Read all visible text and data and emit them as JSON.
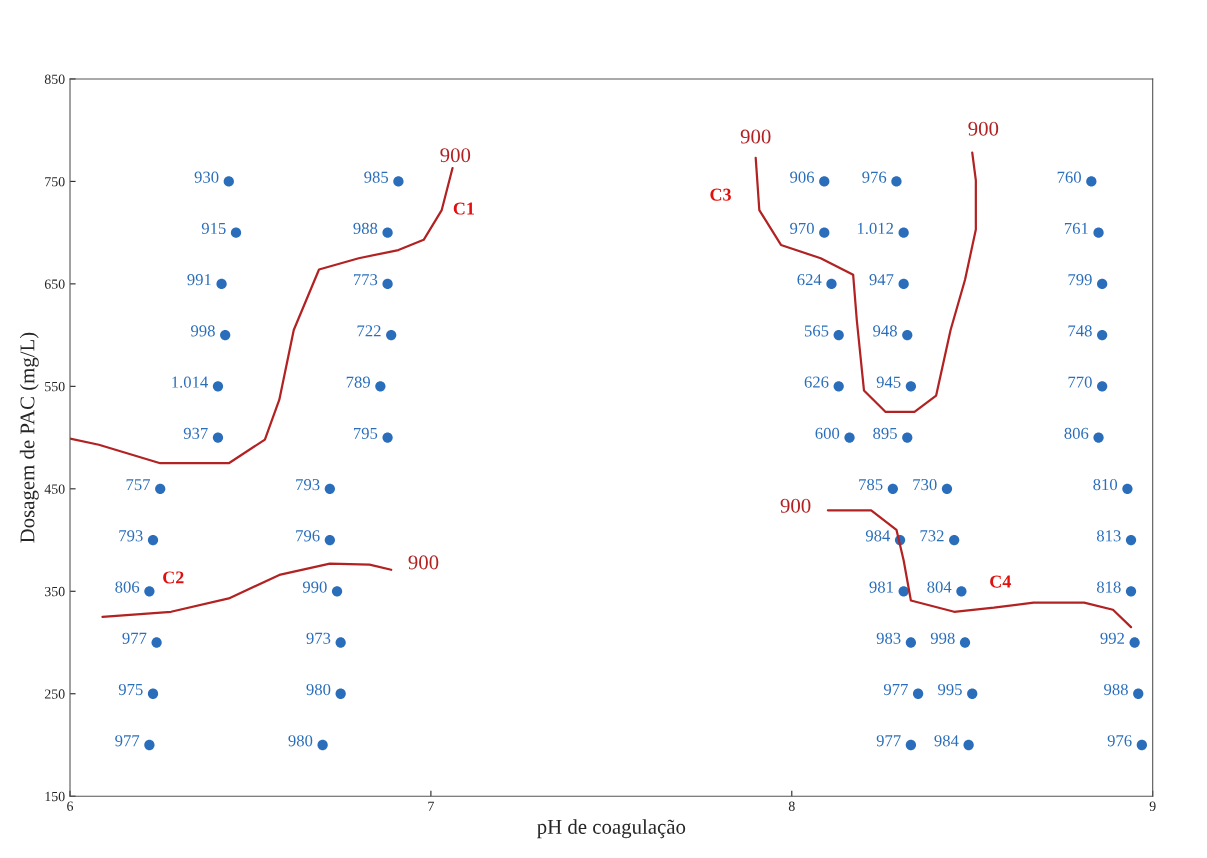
{
  "chart_data": {
    "type": "scatter",
    "xlabel": "pH de coagulação",
    "ylabel": "Dosagem de PAC (mg/L)",
    "xlim": [
      6,
      9
    ],
    "ylim": [
      150,
      850
    ],
    "xticks": [
      6,
      7,
      8,
      9
    ],
    "yticks": [
      150,
      250,
      350,
      450,
      550,
      650,
      750,
      850
    ],
    "grid": false,
    "series": [
      {
        "color": "#2a6ebb",
        "marker": "circle",
        "x": [
          6.44,
          6.46,
          6.42,
          6.43,
          6.41,
          6.41,
          6.25,
          6.23,
          6.22,
          6.24,
          6.23,
          6.22,
          6.91,
          6.88,
          6.88,
          6.89,
          6.86,
          6.88,
          6.72,
          6.72,
          6.74,
          6.75,
          6.75,
          6.7,
          8.09,
          8.09,
          8.11,
          8.13,
          8.13,
          8.16,
          8.28,
          8.3,
          8.31,
          8.33,
          8.35,
          8.33,
          8.29,
          8.31,
          8.31,
          8.32,
          8.33,
          8.32,
          8.43,
          8.45,
          8.47,
          8.48,
          8.5,
          8.49,
          8.83,
          8.85,
          8.86,
          8.86,
          8.86,
          8.85,
          8.93,
          8.94,
          8.94,
          8.95,
          8.96,
          8.97
        ],
        "values": [
          750,
          700,
          650,
          600,
          550,
          500,
          450,
          400,
          350,
          300,
          250,
          200,
          750,
          700,
          650,
          600,
          550,
          500,
          450,
          400,
          350,
          300,
          250,
          200,
          750,
          700,
          650,
          600,
          550,
          500,
          450,
          400,
          350,
          300,
          250,
          200,
          750,
          700,
          650,
          600,
          550,
          500,
          450,
          400,
          350,
          300,
          250,
          200,
          750,
          700,
          650,
          600,
          550,
          500,
          450,
          400,
          350,
          300,
          250,
          200
        ]
      },
      {
        "type": "line",
        "color": "#b22222",
        "x": [
          6.0,
          6.08,
          6.25,
          6.44,
          6.54,
          6.58,
          6.62,
          6.69,
          6.8,
          6.91,
          6.98,
          7.03,
          7.06
        ],
        "values": [
          499,
          493,
          475,
          475,
          498,
          537,
          605,
          664,
          675,
          683,
          693,
          722,
          763
        ]
      },
      {
        "type": "line",
        "color": "#b22222",
        "x": [
          6.09,
          6.28,
          6.44,
          6.58,
          6.72,
          6.83,
          6.89
        ],
        "values": [
          325,
          330,
          343,
          366,
          377,
          376,
          371
        ]
      },
      {
        "type": "line",
        "color": "#b22222",
        "x": [
          7.9,
          7.91,
          7.97,
          8.08,
          8.17,
          8.18,
          8.2,
          8.26,
          8.34,
          8.4,
          8.44,
          8.48,
          8.51,
          8.51,
          8.5
        ],
        "values": [
          773,
          722,
          688,
          675,
          659,
          615,
          546,
          525,
          525,
          541,
          605,
          654,
          703,
          751,
          778
        ]
      },
      {
        "type": "line",
        "color": "#b22222",
        "x": [
          8.1,
          8.22,
          8.29,
          8.31,
          8.33,
          8.45,
          8.56,
          8.67,
          8.81,
          8.89,
          8.94
        ],
        "values": [
          429,
          429,
          410,
          380,
          341,
          330,
          334,
          339,
          339,
          332,
          315
        ]
      }
    ],
    "annotations": [
      {
        "text": "900",
        "x": 7.06,
        "y": 763
      },
      {
        "text": "900",
        "x": 6.89,
        "y": 371
      },
      {
        "text": "900",
        "x": 7.9,
        "y": 773
      },
      {
        "text": "900",
        "x": 8.5,
        "y": 778
      },
      {
        "text": "900",
        "x": 8.1,
        "y": 429
      },
      {
        "text": "C1",
        "x": 7.03,
        "y": 722
      },
      {
        "text": "C2",
        "x": 6.44,
        "y": 343
      },
      {
        "text": "C3",
        "x": 7.91,
        "y": 722
      },
      {
        "text": "C4",
        "x": 8.67,
        "y": 339
      },
      {
        "text": "930",
        "x": 6.44,
        "y": 750
      },
      {
        "text": "915",
        "x": 6.46,
        "y": 700
      },
      {
        "text": "991",
        "x": 6.42,
        "y": 650
      },
      {
        "text": "998",
        "x": 6.43,
        "y": 600
      },
      {
        "text": "1.014",
        "x": 6.41,
        "y": 550
      },
      {
        "text": "937",
        "x": 6.41,
        "y": 500
      },
      {
        "text": "757",
        "x": 6.25,
        "y": 450
      },
      {
        "text": "793",
        "x": 6.23,
        "y": 400
      },
      {
        "text": "806",
        "x": 6.22,
        "y": 350
      },
      {
        "text": "977",
        "x": 6.24,
        "y": 300
      },
      {
        "text": "975",
        "x": 6.23,
        "y": 250
      },
      {
        "text": "977",
        "x": 6.22,
        "y": 200
      },
      {
        "text": "985",
        "x": 6.91,
        "y": 750
      },
      {
        "text": "988",
        "x": 6.88,
        "y": 700
      },
      {
        "text": "773",
        "x": 6.88,
        "y": 650
      },
      {
        "text": "722",
        "x": 6.89,
        "y": 600
      },
      {
        "text": "789",
        "x": 6.86,
        "y": 550
      },
      {
        "text": "795",
        "x": 6.88,
        "y": 500
      },
      {
        "text": "793",
        "x": 6.72,
        "y": 450
      },
      {
        "text": "796",
        "x": 6.72,
        "y": 400
      },
      {
        "text": "990",
        "x": 6.74,
        "y": 350
      },
      {
        "text": "973",
        "x": 6.75,
        "y": 300
      },
      {
        "text": "980",
        "x": 6.75,
        "y": 250
      },
      {
        "text": "980",
        "x": 6.7,
        "y": 200
      },
      {
        "text": "906",
        "x": 8.09,
        "y": 750
      },
      {
        "text": "970",
        "x": 8.09,
        "y": 700
      },
      {
        "text": "624",
        "x": 8.11,
        "y": 650
      },
      {
        "text": "565",
        "x": 8.13,
        "y": 600
      },
      {
        "text": "626",
        "x": 8.13,
        "y": 550
      },
      {
        "text": "600",
        "x": 8.16,
        "y": 500
      },
      {
        "text": "785",
        "x": 8.28,
        "y": 450
      },
      {
        "text": "984",
        "x": 8.3,
        "y": 400
      },
      {
        "text": "981",
        "x": 8.31,
        "y": 350
      },
      {
        "text": "983",
        "x": 8.33,
        "y": 300
      },
      {
        "text": "977",
        "x": 8.35,
        "y": 250
      },
      {
        "text": "977",
        "x": 8.33,
        "y": 200
      },
      {
        "text": "976",
        "x": 8.29,
        "y": 750
      },
      {
        "text": "1.012",
        "x": 8.31,
        "y": 700
      },
      {
        "text": "947",
        "x": 8.31,
        "y": 650
      },
      {
        "text": "948",
        "x": 8.32,
        "y": 600
      },
      {
        "text": "945",
        "x": 8.33,
        "y": 550
      },
      {
        "text": "895",
        "x": 8.32,
        "y": 500
      },
      {
        "text": "730",
        "x": 8.43,
        "y": 450
      },
      {
        "text": "732",
        "x": 8.45,
        "y": 400
      },
      {
        "text": "804",
        "x": 8.47,
        "y": 350
      },
      {
        "text": "998",
        "x": 8.48,
        "y": 300
      },
      {
        "text": "995",
        "x": 8.5,
        "y": 250
      },
      {
        "text": "984",
        "x": 8.49,
        "y": 200
      },
      {
        "text": "760",
        "x": 8.83,
        "y": 750
      },
      {
        "text": "761",
        "x": 8.85,
        "y": 700
      },
      {
        "text": "799",
        "x": 8.86,
        "y": 650
      },
      {
        "text": "748",
        "x": 8.86,
        "y": 600
      },
      {
        "text": "770",
        "x": 8.86,
        "y": 550
      },
      {
        "text": "806",
        "x": 8.85,
        "y": 500
      },
      {
        "text": "810",
        "x": 8.93,
        "y": 450
      },
      {
        "text": "813",
        "x": 8.94,
        "y": 400
      },
      {
        "text": "818",
        "x": 8.94,
        "y": 350
      },
      {
        "text": "992",
        "x": 8.95,
        "y": 300
      },
      {
        "text": "988",
        "x": 8.96,
        "y": 250
      },
      {
        "text": "976",
        "x": 8.97,
        "y": 200
      }
    ]
  }
}
